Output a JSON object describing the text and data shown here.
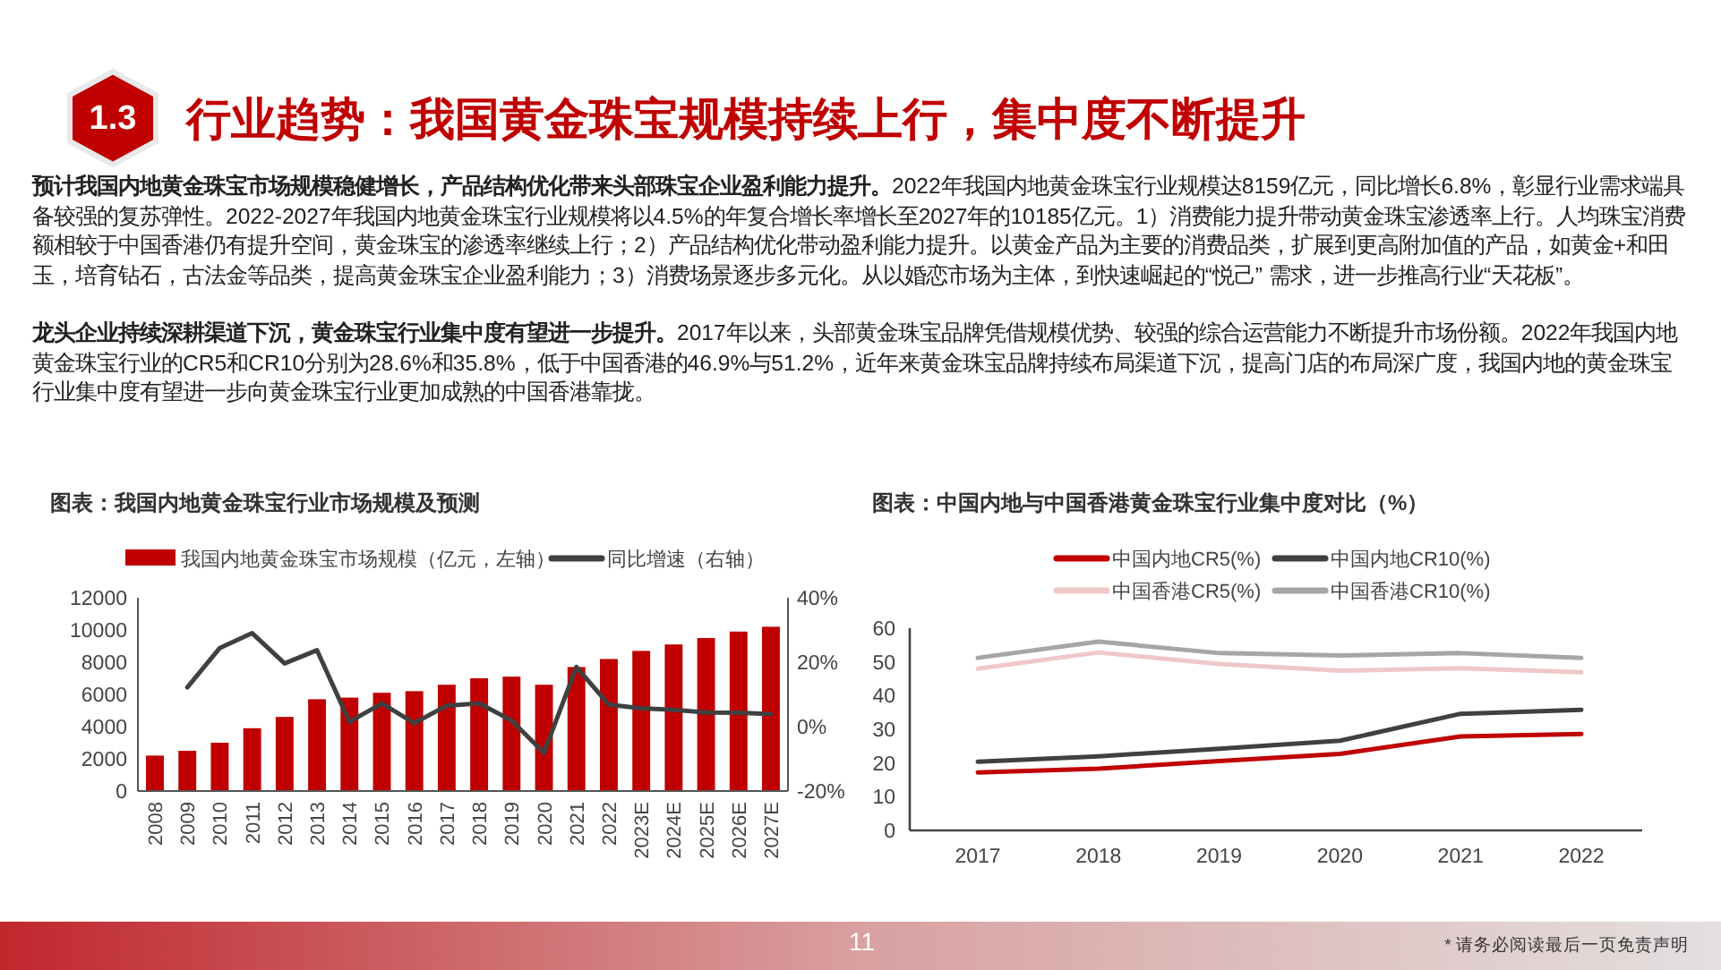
{
  "chart_data": [
    {
      "type": "other",
      "title": "行业趋势：我国黄金珠宝规模持续上行，集中度不断提升",
      "annotations": [
        "1.3",
        "预计我国内地黄金珠宝市场规模稳健增长，产品结构优化带来头部珠宝企业盈利能力提升。2022年我国内地黄金珠宝行业规模达8159亿元，同比增长6.8%，彰显行业需求端具备较强的复苏弹性。2022-2027年我国内地黄金珠宝行业规模将以4.5%的年复合增长率增长至2027年的10185亿元。1）消费能力提升带动黄金珠宝渗透率上行。人均珠宝消费额相较于中国香港仍有提升空间，黄金珠宝的渗透率继续上行；2）产品结构优化带动盈利能力提升。以黄金产品为主要的消费品类，扩展到更高附加值的产品，如黄金+和田玉，培育钻石，古法金等品类，提高黄金珠宝企业盈利能力；3）消费场景逐步多元化。从以婚恋市场为主体，到快速崛起的“悦己” 需求，进一步推高行业“天花板”。",
        "龙头企业持续深耕渠道下沉，黄金珠宝行业集中度有望进一步提升。2017年以来，头部黄金珠宝品牌凭借规模优势、较强的综合运营能力不断提升市场份额。2022年我国内地黄金珠宝行业的CR5和CR10分别为28.6%和35.8%，低于中国香港的46.9%与51.2%，近年来黄金珠宝品牌持续布局渠道下沉，提高门店的布局深广度，我国内地的黄金珠宝行业集中度有望进一步向黄金珠宝行业更加成熟的中国香港靠拢。",
        "11",
        "* 请务必阅读最后一页免责声明"
      ]
    },
    {
      "type": "bar",
      "title": "图表：我国内地黄金珠宝行业市场规模及预测",
      "categories": [
        "2008",
        "2009",
        "2010",
        "2011",
        "2012",
        "2013",
        "2014",
        "2015",
        "2016",
        "2017",
        "2018",
        "2019",
        "2020",
        "2021",
        "2022",
        "2023E",
        "2024E",
        "2025E",
        "2026E",
        "2027E"
      ],
      "series": [
        {
          "name": "我国内地黄金珠宝市场规模（亿元，左轴）",
          "color": "#c00000",
          "values": [
            2200,
            2500,
            3000,
            3900,
            4600,
            5700,
            5800,
            6100,
            6200,
            6600,
            7000,
            7100,
            6600,
            7700,
            8200,
            8700,
            9100,
            9500,
            9900,
            10200
          ]
        },
        {
          "name": "同比增速（右轴）",
          "type": "line",
          "axis": "y2",
          "color": "#404040",
          "values": [
            null,
            12.2,
            24.4,
            29,
            19.6,
            23.7,
            1.5,
            7.2,
            1.1,
            6.5,
            7.2,
            1.9,
            -8.1,
            18.5,
            6.8,
            5.7,
            5.2,
            4.4,
            4.3,
            3.9
          ]
        }
      ],
      "ylim": [
        0,
        12000
      ],
      "yticks": [
        0,
        2000,
        4000,
        6000,
        8000,
        10000,
        12000
      ],
      "y2lim": [
        -20,
        40
      ],
      "y2ticks": [
        {
          "value": -20,
          "label": "-20%"
        },
        {
          "value": 0,
          "label": "0%"
        },
        {
          "value": 20,
          "label": "20%"
        },
        {
          "value": 40,
          "label": "40%"
        }
      ],
      "legend": "top",
      "grid": false
    },
    {
      "type": "line",
      "title": "图表：中国内地与中国香港黄金珠宝行业集中度对比（%）",
      "categories": [
        "2017",
        "2018",
        "2019",
        "2020",
        "2021",
        "2022"
      ],
      "series": [
        {
          "name": "中国内地CR5(%)",
          "color": "#c00000",
          "values": [
            17.2,
            18.3,
            20.6,
            22.7,
            27.9,
            28.6
          ]
        },
        {
          "name": "中国内地CR10(%)",
          "color": "#404040",
          "values": [
            20.4,
            22.0,
            24.2,
            26.6,
            34.6,
            35.8
          ]
        },
        {
          "name": "中国香港CR5(%)",
          "color": "#f0c8c8",
          "values": [
            48.0,
            52.8,
            49.4,
            47.4,
            48.1,
            46.9
          ]
        },
        {
          "name": "中国香港CR10(%)",
          "color": "#a6a6a6",
          "values": [
            51.2,
            56.0,
            52.6,
            51.9,
            52.6,
            51.2
          ]
        }
      ],
      "ylim": [
        0,
        60
      ],
      "yticks": [
        0,
        10,
        20,
        30,
        40,
        50,
        60
      ],
      "legend": "top",
      "grid": false
    }
  ]
}
